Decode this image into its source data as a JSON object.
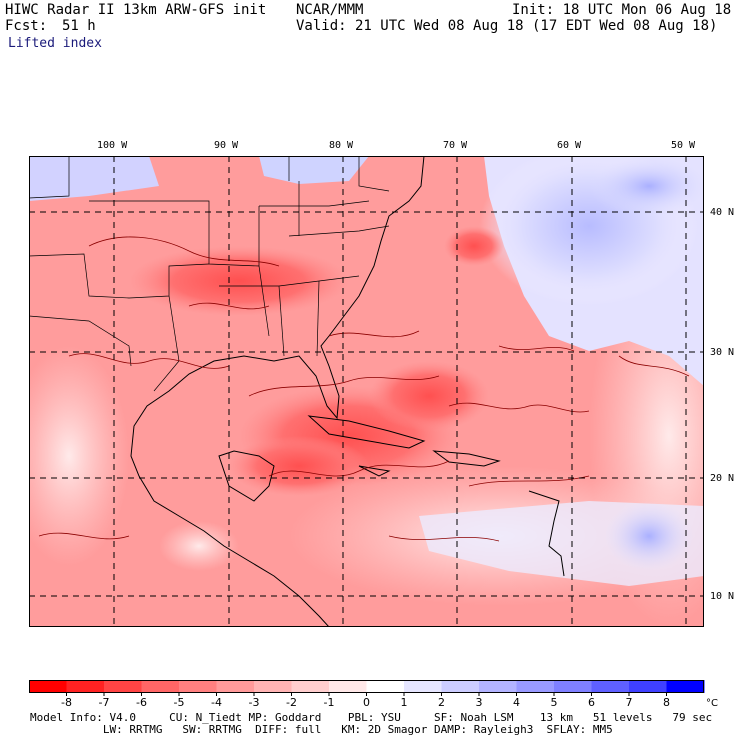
{
  "header": {
    "model": "HIWC Radar II 13km ARW-GFS init",
    "org": "NCAR/MMM",
    "init": "Init: 18 UTC Mon 06 Aug 18",
    "fcst_label": "Fcst:",
    "fcst_value": "51 h",
    "valid": "Valid: 21 UTC Wed 08 Aug 18 (17 EDT Wed 08 Aug 18)"
  },
  "field_name": "Lifted index",
  "map": {
    "lon_labels": [
      "100 W",
      "90 W",
      "80 W",
      "70 W",
      "60 W",
      "50 W"
    ],
    "lat_labels": [
      "40 N",
      "30 N",
      "20 N",
      "10 N"
    ]
  },
  "colorbar": {
    "ticks": [
      "-8",
      "-7",
      "-6",
      "-5",
      "-4",
      "-3",
      "-2",
      "-1",
      "0",
      "1",
      "2",
      "3",
      "4",
      "5",
      "6",
      "7",
      "8"
    ],
    "unit": "°C",
    "colors": [
      "#ff0000",
      "#ff2222",
      "#ff4444",
      "#ff6666",
      "#ff8080",
      "#ff9a9a",
      "#ffb4b4",
      "#ffcece",
      "#ffe8e8",
      "#ffffff",
      "#e6e6ff",
      "#cccdff",
      "#b3b4ff",
      "#999aff",
      "#7f80ff",
      "#5f60ff",
      "#3f40ff",
      "#0000ff"
    ]
  },
  "footer": {
    "line1": "Model Info: V4.0     CU: N_Tiedt MP: Goddard    PBL: YSU     SF: Noah LSM    13 km   51 levels   79 sec",
    "line2": "           LW: RRTMG   SW: RRTMG  DIFF: full   KM: 2D Smagor DAMP: Rayleigh3  SFLAY: MM5"
  }
}
